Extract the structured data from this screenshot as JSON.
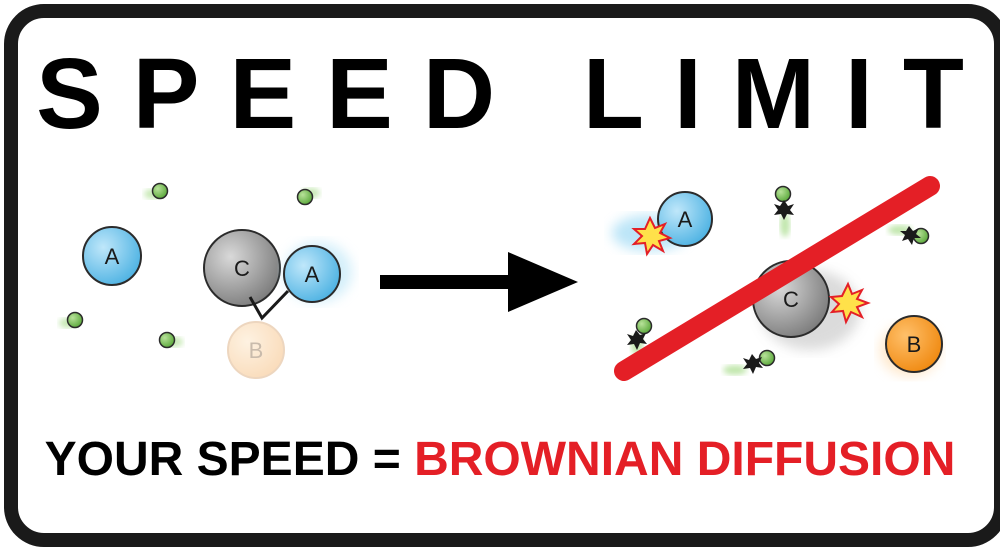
{
  "title": "SPEED LIMIT",
  "bottom_line": {
    "prefix": "YOUR SPEED = ",
    "value": "BROWNIAN DIFFUSION"
  },
  "molecules": {
    "a": "A",
    "b": "B",
    "c": "C"
  },
  "colors": {
    "border": "#1a1a1a",
    "molecule_a": "#6cc4ec",
    "molecule_b": "#f7931e",
    "molecule_c": "#8c8c8c",
    "small_particle": "#6dbb45",
    "strike_line": "#e41f26",
    "value_text": "#e41f26"
  }
}
